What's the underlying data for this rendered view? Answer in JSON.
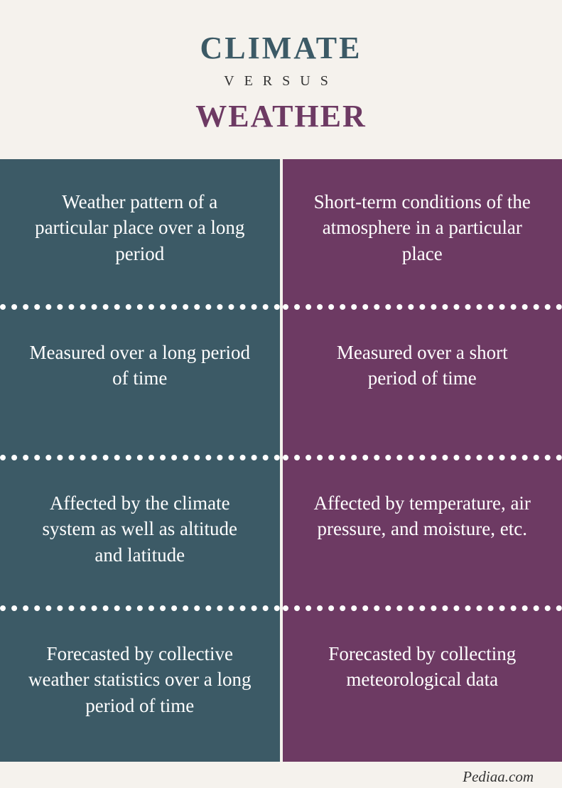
{
  "header": {
    "title_top": "CLIMATE",
    "title_mid": "VERSUS",
    "title_bottom": "WEATHER",
    "color_climate": "#3c5a66",
    "color_versus": "#333333",
    "color_weather": "#6d3a63"
  },
  "comparison": {
    "left_bg": "#3c5a66",
    "right_bg": "#6d3a63",
    "text_color": "#ffffff",
    "rows": [
      {
        "left": "Weather pattern of a particular place over a long period",
        "right": "Short-term conditions of the atmosphere in a particular place"
      },
      {
        "left": "Measured over a long period of time",
        "right": "Measured over a short period of time"
      },
      {
        "left": "Affected by the climate system as well as altitude and latitude",
        "right": "Affected by temperature, air pressure, and moisture, etc."
      },
      {
        "left": "Forecasted by collective weather statistics over a long period of time",
        "right": "Forecasted by collecting meteorological data"
      }
    ]
  },
  "footer": {
    "text": "Pediaa.com"
  }
}
